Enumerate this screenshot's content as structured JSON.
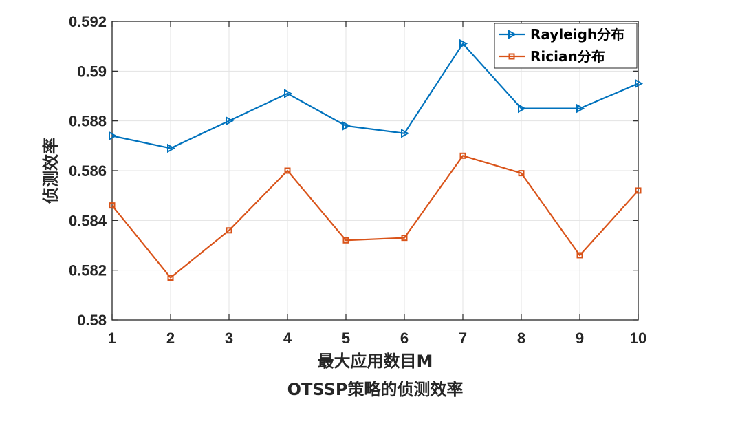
{
  "chart_data": {
    "type": "line",
    "title": "OTSSP策略的侦测效率",
    "xlabel": "最大应用数目M",
    "ylabel": "侦测效率",
    "x": [
      1,
      2,
      3,
      4,
      5,
      6,
      7,
      8,
      9,
      10
    ],
    "xlim": [
      1,
      10
    ],
    "ylim": [
      0.58,
      0.592
    ],
    "xticks": [
      "1",
      "2",
      "3",
      "4",
      "5",
      "6",
      "7",
      "8",
      "9",
      "10"
    ],
    "yticks": [
      "0.58",
      "0.582",
      "0.584",
      "0.586",
      "0.588",
      "0.59",
      "0.592"
    ],
    "grid": true,
    "legend_position": "top-right",
    "series": [
      {
        "name": "Rayleigh分布",
        "color": "#0072BD",
        "marker": "triangle-right",
        "values": [
          0.5874,
          0.5869,
          0.588,
          0.5891,
          0.5878,
          0.5875,
          0.5911,
          0.5885,
          0.5885,
          0.5895
        ]
      },
      {
        "name": "Rician分布",
        "color": "#D95319",
        "marker": "square",
        "values": [
          0.5846,
          0.5817,
          0.5836,
          0.586,
          0.5832,
          0.5833,
          0.5866,
          0.5859,
          0.5826,
          0.5852
        ]
      }
    ]
  }
}
